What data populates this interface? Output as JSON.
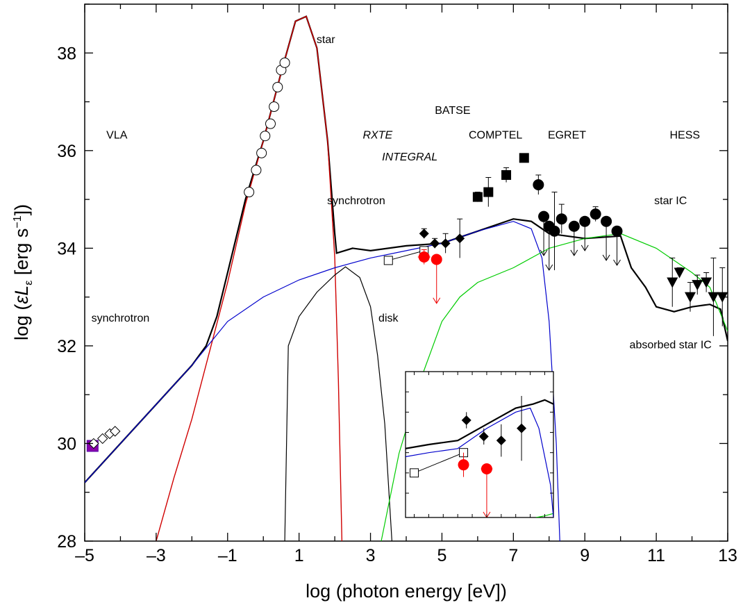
{
  "chart_data": {
    "type": "line",
    "xlabel": "log (photon energy [eV])",
    "ylabel_parts": [
      "log (",
      "εL",
      "ε",
      " [erg s",
      "−1",
      "])"
    ],
    "xlim": [
      -5,
      13
    ],
    "ylim": [
      28,
      39
    ],
    "x_ticks": [
      -5,
      -3,
      -1,
      1,
      3,
      5,
      7,
      9,
      11,
      13
    ],
    "x_tick_labels": [
      "–5",
      "–3",
      "–1",
      "1",
      "3",
      "5",
      "7",
      "9",
      "11",
      "13"
    ],
    "y_ticks": [
      28,
      30,
      32,
      34,
      36,
      38
    ],
    "y_tick_labels": [
      "28",
      "30",
      "32",
      "34",
      "36",
      "38"
    ],
    "annotations": [
      {
        "text": "star",
        "x": 1.75,
        "y": 38.2,
        "italic": false
      },
      {
        "text": "VLA",
        "x": -4.1,
        "y": 36.25,
        "italic": false
      },
      {
        "text": "BATSE",
        "x": 5.3,
        "y": 36.75,
        "italic": false
      },
      {
        "text": "RXTE",
        "x": 3.2,
        "y": 36.25,
        "italic": true
      },
      {
        "text": "COMPTEL",
        "x": 6.5,
        "y": 36.25,
        "italic": false
      },
      {
        "text": "EGRET",
        "x": 8.5,
        "y": 36.25,
        "italic": false
      },
      {
        "text": "HESS",
        "x": 11.8,
        "y": 36.25,
        "italic": false
      },
      {
        "text": "INTEGRAL",
        "x": 4.1,
        "y": 35.8,
        "italic": true
      },
      {
        "text": "synchrotron",
        "x": 2.6,
        "y": 34.9,
        "italic": false
      },
      {
        "text": "star IC",
        "x": 11.4,
        "y": 34.9,
        "italic": false
      },
      {
        "text": "synchrotron",
        "x": -4.0,
        "y": 32.5,
        "italic": false
      },
      {
        "text": "disk",
        "x": 3.5,
        "y": 32.5,
        "italic": false
      },
      {
        "text": "absorbed star IC",
        "x": 11.4,
        "y": 31.95,
        "italic": false
      }
    ],
    "series": [
      {
        "kind": "curve",
        "color": "#000000",
        "width": 2.2,
        "points": [
          [
            -5,
            29.2
          ],
          [
            -4,
            30.0
          ],
          [
            -3,
            30.8
          ],
          [
            -2,
            31.6
          ],
          [
            -1.6,
            32.0
          ],
          [
            -1.3,
            32.6
          ],
          [
            -1,
            33.5
          ],
          [
            -0.5,
            35.0
          ],
          [
            0,
            36.2
          ],
          [
            0.5,
            37.6
          ],
          [
            0.9,
            38.65
          ],
          [
            1.2,
            38.75
          ],
          [
            1.5,
            38.1
          ],
          [
            1.8,
            36.2
          ],
          [
            2.0,
            34.3
          ],
          [
            2.05,
            33.9
          ],
          [
            2.5,
            34.0
          ],
          [
            3,
            33.95
          ],
          [
            4,
            34.05
          ],
          [
            5,
            34.1
          ],
          [
            6,
            34.35
          ],
          [
            7,
            34.6
          ],
          [
            7.5,
            34.55
          ],
          [
            8,
            34.3
          ],
          [
            9,
            34.2
          ],
          [
            10,
            34.25
          ],
          [
            10.3,
            33.6
          ],
          [
            10.7,
            33.2
          ],
          [
            11,
            32.8
          ],
          [
            11.5,
            32.7
          ],
          [
            12,
            32.8
          ],
          [
            12.5,
            32.85
          ],
          [
            12.8,
            32.75
          ],
          [
            13,
            32.1
          ]
        ]
      },
      {
        "kind": "curve",
        "color": "#d00000",
        "width": 1.4,
        "points": [
          [
            -3,
            28.0
          ],
          [
            -2.5,
            29.3
          ],
          [
            -2,
            30.5
          ],
          [
            -1.5,
            31.9
          ],
          [
            -1,
            33.3
          ],
          [
            -0.5,
            34.9
          ],
          [
            0,
            36.2
          ],
          [
            0.5,
            37.6
          ],
          [
            0.9,
            38.65
          ],
          [
            1.2,
            38.75
          ],
          [
            1.5,
            38.1
          ],
          [
            1.8,
            36.2
          ],
          [
            2.0,
            33.8
          ],
          [
            2.1,
            31.3
          ],
          [
            2.2,
            28.0
          ]
        ]
      },
      {
        "kind": "curve",
        "color": "#0000cc",
        "width": 1.2,
        "points": [
          [
            -5,
            29.2
          ],
          [
            -4,
            30.0
          ],
          [
            -3,
            30.8
          ],
          [
            -2,
            31.6
          ],
          [
            -1,
            32.5
          ],
          [
            0,
            33.0
          ],
          [
            1,
            33.35
          ],
          [
            2,
            33.6
          ],
          [
            3,
            33.8
          ],
          [
            4,
            33.95
          ],
          [
            5,
            34.1
          ],
          [
            6,
            34.35
          ],
          [
            7,
            34.55
          ],
          [
            7.5,
            34.4
          ],
          [
            7.8,
            33.8
          ],
          [
            8.0,
            32.5
          ],
          [
            8.2,
            30.0
          ],
          [
            8.3,
            28.0
          ]
        ]
      },
      {
        "kind": "curve",
        "color": "#000000",
        "width": 1.2,
        "points": [
          [
            0.6,
            28.0
          ],
          [
            0.7,
            32.0
          ],
          [
            1.0,
            32.6
          ],
          [
            1.5,
            33.1
          ],
          [
            2.0,
            33.45
          ],
          [
            2.3,
            33.62
          ],
          [
            2.7,
            33.4
          ],
          [
            3.0,
            32.8
          ],
          [
            3.2,
            31.8
          ],
          [
            3.4,
            30.4
          ],
          [
            3.6,
            28.0
          ]
        ]
      },
      {
        "kind": "curve",
        "color": "#00cc00",
        "width": 1.2,
        "points": [
          [
            3.3,
            28.0
          ],
          [
            3.8,
            29.8
          ],
          [
            4.5,
            31.5
          ],
          [
            5,
            32.5
          ],
          [
            5.5,
            33.0
          ],
          [
            6,
            33.3
          ],
          [
            7,
            33.6
          ],
          [
            8,
            34.0
          ],
          [
            9,
            34.2
          ],
          [
            10,
            34.3
          ],
          [
            11,
            34.0
          ],
          [
            12,
            33.5
          ],
          [
            12.5,
            33.2
          ],
          [
            13,
            32.3
          ]
        ]
      }
    ],
    "vla_points": [
      [
        -4.75,
        30.0
      ],
      [
        -4.5,
        30.1
      ],
      [
        -4.3,
        30.2
      ],
      [
        -4.15,
        30.25
      ]
    ],
    "vla_filled_square": [
      -4.78,
      29.95
    ],
    "star_points": [
      [
        -0.4,
        35.15
      ],
      [
        -0.2,
        35.6
      ],
      [
        -0.05,
        35.95
      ],
      [
        0.05,
        36.3
      ],
      [
        0.2,
        36.55
      ],
      [
        0.3,
        36.9
      ],
      [
        0.4,
        37.3
      ],
      [
        0.5,
        37.65
      ],
      [
        0.6,
        37.8
      ]
    ],
    "rxte_diamonds": [
      [
        4.5,
        34.3,
        0.1
      ],
      [
        4.8,
        34.1,
        0.1
      ],
      [
        5.1,
        34.1,
        0.2
      ],
      [
        5.5,
        34.2,
        0.4
      ]
    ],
    "open_squares": [
      [
        3.5,
        33.75
      ],
      [
        4.5,
        33.95
      ]
    ],
    "integral_red": [
      [
        4.5,
        33.82,
        0.35,
        0.15
      ],
      [
        4.85,
        33.77,
        0.3,
        0.9
      ]
    ],
    "comptel_squares": [
      [
        6.0,
        35.05,
        0.1
      ],
      [
        6.3,
        35.15,
        0.3
      ],
      [
        6.8,
        35.5,
        0.15
      ],
      [
        7.3,
        35.85,
        0.0
      ]
    ],
    "egret_circles": [
      [
        7.7,
        35.3,
        0.2,
        false
      ],
      [
        7.85,
        34.65,
        0.8,
        true
      ],
      [
        8.0,
        34.45,
        0.9,
        true
      ],
      [
        8.15,
        34.35,
        0.8,
        false
      ],
      [
        8.35,
        34.6,
        0.3,
        false
      ],
      [
        8.7,
        34.45,
        0.6,
        true
      ],
      [
        9.0,
        34.55,
        0.6,
        true
      ],
      [
        9.3,
        34.7,
        0.15,
        false
      ],
      [
        9.6,
        34.55,
        0.8,
        true
      ],
      [
        9.9,
        34.35,
        0.7,
        true
      ]
    ],
    "hess_triangles": [
      [
        11.45,
        33.3,
        0.5
      ],
      [
        11.65,
        33.5,
        0.1
      ],
      [
        11.95,
        33.0,
        0.3
      ],
      [
        12.15,
        33.25,
        0.2
      ],
      [
        12.4,
        33.3,
        0.2
      ],
      [
        12.6,
        33.0,
        0.8
      ],
      [
        12.85,
        33.0,
        0.6
      ]
    ],
    "inset": {
      "x_range": [
        3.2,
        8.3
      ],
      "y_range": [
        33.2,
        35.0
      ],
      "black_curve": [
        [
          3.2,
          34.05
        ],
        [
          4,
          34.1
        ],
        [
          5,
          34.15
        ],
        [
          6,
          34.35
        ],
        [
          7,
          34.55
        ],
        [
          7.6,
          34.6
        ],
        [
          8.0,
          34.65
        ],
        [
          8.3,
          34.6
        ]
      ],
      "blue_curve": [
        [
          3.2,
          33.95
        ],
        [
          4,
          34.0
        ],
        [
          5,
          34.05
        ],
        [
          6,
          34.3
        ],
        [
          7,
          34.5
        ],
        [
          7.5,
          34.55
        ],
        [
          7.8,
          34.3
        ],
        [
          8.2,
          33.6
        ],
        [
          8.3,
          33.2
        ]
      ],
      "green_curve": [
        [
          7.7,
          33.2
        ],
        [
          8.0,
          33.22
        ],
        [
          8.3,
          33.25
        ]
      ],
      "open_squares": [
        [
          3.5,
          33.75
        ],
        [
          5.2,
          34.0
        ]
      ],
      "diamonds": [
        [
          5.3,
          34.4,
          0.1
        ],
        [
          5.9,
          34.2,
          0.1
        ],
        [
          6.5,
          34.15,
          0.2
        ],
        [
          7.2,
          34.3,
          0.4
        ]
      ],
      "red_points": [
        [
          5.2,
          33.85,
          0.3,
          0.15
        ],
        [
          6.0,
          33.8,
          0.4,
          0.6
        ]
      ]
    }
  }
}
